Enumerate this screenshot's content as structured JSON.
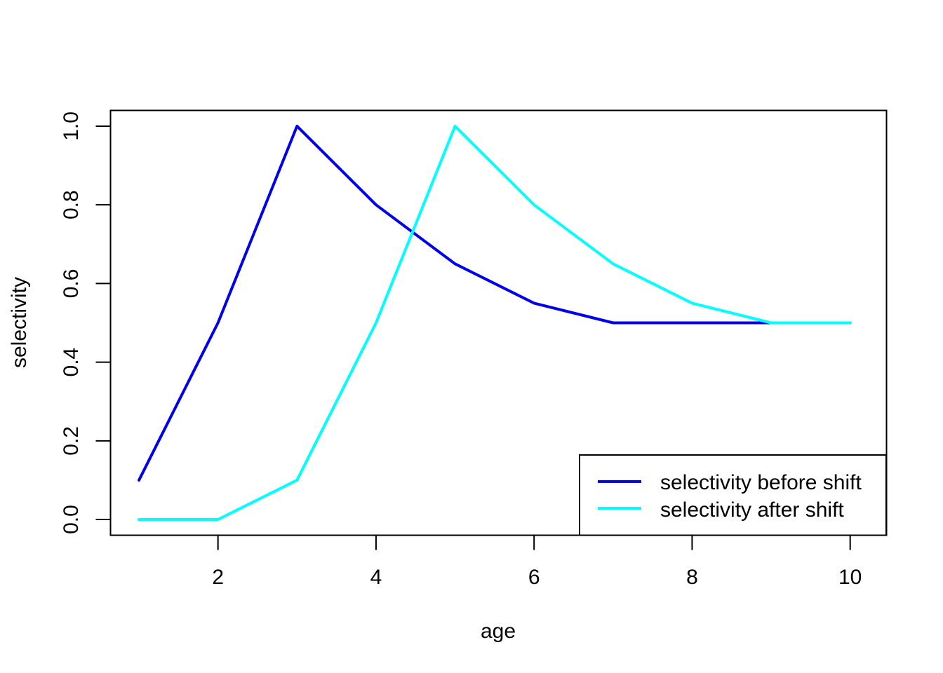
{
  "chart_data": {
    "type": "line",
    "title": "",
    "xlabel": "age",
    "ylabel": "selectivity",
    "xlim": [
      0.64,
      10.46
    ],
    "ylim": [
      -0.04,
      1.04
    ],
    "x_ticks": [
      2,
      4,
      6,
      8,
      10
    ],
    "y_ticks": [
      0.0,
      0.2,
      0.4,
      0.6,
      0.8,
      1.0
    ],
    "x_tick_labels": [
      "2",
      "4",
      "6",
      "8",
      "10"
    ],
    "y_tick_labels": [
      "0.0",
      "0.2",
      "0.4",
      "0.6",
      "0.8",
      "1.0"
    ],
    "grid": false,
    "legend": "bottom-right",
    "x": [
      1,
      2,
      3,
      4,
      5,
      6,
      7,
      8,
      9,
      10
    ],
    "series": [
      {
        "name": "selectivity before shift",
        "color": "#0000ee",
        "values": [
          0.1,
          0.5,
          1.0,
          0.8,
          0.65,
          0.55,
          0.5,
          0.5,
          0.5,
          0.5
        ]
      },
      {
        "name": "selectivity after shift",
        "color": "#00ffff",
        "values": [
          0.0,
          0.0,
          0.1,
          0.5,
          1.0,
          0.8,
          0.65,
          0.55,
          0.5,
          0.5
        ]
      }
    ]
  }
}
